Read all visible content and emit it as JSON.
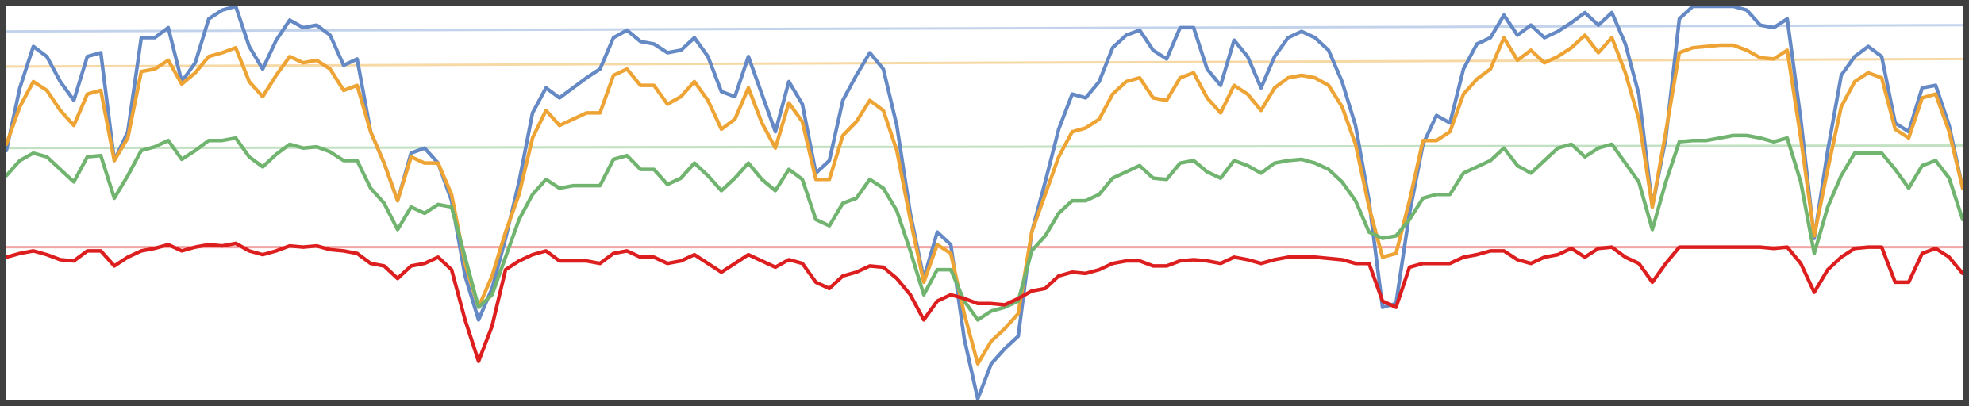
{
  "chart_data": {
    "type": "line",
    "categories": [
      null,
      null,
      null,
      null,
      null,
      null,
      null,
      null,
      null,
      null,
      null,
      null,
      null,
      null,
      null,
      null,
      null,
      null,
      null,
      null,
      null,
      null,
      null,
      null,
      null,
      null,
      null,
      null,
      null,
      null,
      null,
      null,
      null,
      null,
      null,
      null,
      null,
      null,
      null,
      null,
      null,
      null,
      null,
      null,
      null,
      null,
      null,
      null,
      null,
      null,
      null,
      null,
      null,
      null,
      null,
      null,
      null,
      null,
      null,
      null,
      null,
      null,
      null,
      null,
      null,
      null,
      null,
      null,
      null,
      null,
      null,
      null,
      null,
      null,
      null,
      null,
      null,
      null,
      null,
      null,
      null,
      null,
      null,
      null,
      null,
      null,
      null,
      null,
      null,
      null,
      null,
      null,
      null,
      null,
      null,
      null,
      null,
      null,
      null,
      null,
      null,
      null,
      null,
      null,
      null,
      null,
      null,
      null,
      null,
      null,
      null,
      null,
      null,
      null,
      null,
      null,
      null,
      null,
      null,
      null,
      null,
      null,
      null,
      null,
      null,
      null,
      null,
      null,
      null,
      null,
      null,
      null,
      null,
      null,
      null,
      null,
      null,
      null,
      null,
      null,
      null,
      null,
      null,
      null,
      null,
      null
    ],
    "ylim": [
      0,
      313
    ],
    "series": [
      {
        "color": "#6589c4",
        "values": [
          198,
          248,
          281,
          273,
          253,
          238,
          273,
          276,
          190,
          213,
          288,
          288,
          296,
          253,
          268,
          303,
          310,
          313,
          281,
          263,
          286,
          302,
          296,
          298,
          290,
          266,
          271,
          213,
          188,
          158,
          196,
          200,
          188,
          158,
          98,
          63,
          88,
          128,
          173,
          228,
          248,
          240,
          248,
          256,
          263,
          288,
          294,
          285,
          283,
          276,
          278,
          288,
          273,
          245,
          241,
          273,
          243,
          213,
          253,
          235,
          180,
          190,
          238,
          258,
          276,
          263,
          218,
          148,
          96,
          133,
          123,
          48,
          0,
          28,
          40,
          50,
          133,
          173,
          215,
          243,
          240,
          253,
          280,
          290,
          294,
          278,
          271,
          296,
          296,
          263,
          250,
          286,
          273,
          248,
          273,
          288,
          293,
          288,
          278,
          253,
          218,
          158,
          73,
          76,
          148,
          203,
          226,
          220,
          263,
          283,
          288,
          306,
          290,
          298,
          288,
          293,
          300,
          308,
          298,
          308,
          283,
          243,
          153,
          208,
          303,
          313,
          313,
          313,
          313,
          310,
          298,
          296,
          303,
          223,
          128,
          198,
          258,
          273,
          281,
          273,
          220,
          213,
          248,
          250,
          218,
          168
        ]
      },
      {
        "color": "#eea434",
        "values": [
          203,
          233,
          253,
          246,
          230,
          218,
          243,
          246,
          190,
          208,
          261,
          263,
          270,
          251,
          260,
          273,
          276,
          280,
          253,
          241,
          258,
          273,
          268,
          270,
          263,
          246,
          250,
          213,
          188,
          158,
          193,
          188,
          188,
          163,
          108,
          73,
          98,
          133,
          163,
          208,
          230,
          218,
          223,
          228,
          228,
          258,
          263,
          250,
          250,
          235,
          241,
          253,
          238,
          215,
          223,
          248,
          220,
          200,
          236,
          221,
          175,
          175,
          210,
          221,
          238,
          230,
          198,
          143,
          93,
          123,
          116,
          68,
          28,
          46,
          56,
          68,
          133,
          163,
          193,
          213,
          216,
          223,
          243,
          253,
          256,
          240,
          238,
          256,
          260,
          240,
          228,
          250,
          243,
          230,
          248,
          256,
          258,
          256,
          250,
          233,
          203,
          153,
          113,
          116,
          158,
          206,
          206,
          213,
          243,
          255,
          263,
          288,
          270,
          278,
          268,
          273,
          280,
          290,
          276,
          288,
          260,
          223,
          153,
          213,
          276,
          280,
          281,
          282,
          282,
          278,
          272,
          271,
          278,
          208,
          130,
          183,
          233,
          253,
          260,
          256,
          215,
          208,
          240,
          243,
          213,
          168
        ]
      },
      {
        "color": "#70b470",
        "values": [
          178,
          190,
          196,
          193,
          183,
          173,
          193,
          194,
          160,
          178,
          198,
          201,
          206,
          191,
          198,
          206,
          206,
          208,
          193,
          185,
          195,
          203,
          200,
          201,
          197,
          190,
          190,
          168,
          156,
          135,
          153,
          148,
          155,
          153,
          113,
          73,
          83,
          113,
          143,
          163,
          175,
          168,
          170,
          170,
          170,
          191,
          194,
          183,
          183,
          171,
          176,
          188,
          178,
          166,
          176,
          188,
          175,
          166,
          183,
          175,
          143,
          138,
          156,
          160,
          175,
          168,
          150,
          118,
          83,
          103,
          103,
          78,
          63,
          70,
          73,
          78,
          118,
          130,
          148,
          158,
          158,
          163,
          176,
          181,
          186,
          176,
          175,
          188,
          190,
          181,
          176,
          190,
          186,
          180,
          188,
          190,
          191,
          188,
          183,
          173,
          158,
          133,
          128,
          130,
          143,
          160,
          163,
          163,
          180,
          185,
          190,
          200,
          186,
          180,
          190,
          200,
          203,
          193,
          200,
          203,
          188,
          173,
          135,
          173,
          205,
          206,
          206,
          208,
          210,
          210,
          208,
          205,
          208,
          173,
          116,
          153,
          178,
          196,
          196,
          196,
          183,
          168,
          186,
          190,
          176,
          143
        ]
      },
      {
        "color": "#dc1e1e",
        "values": [
          113,
          116,
          118,
          115,
          111,
          110,
          118,
          118,
          106,
          113,
          118,
          120,
          123,
          118,
          121,
          123,
          122,
          124,
          118,
          115,
          118,
          122,
          121,
          122,
          119,
          118,
          116,
          108,
          106,
          96,
          106,
          108,
          113,
          103,
          63,
          30,
          58,
          103,
          110,
          115,
          118,
          110,
          110,
          110,
          108,
          116,
          118,
          113,
          113,
          108,
          110,
          115,
          108,
          101,
          108,
          115,
          110,
          105,
          111,
          108,
          93,
          88,
          98,
          101,
          106,
          105,
          96,
          83,
          63,
          78,
          83,
          80,
          76,
          76,
          75,
          80,
          86,
          88,
          98,
          101,
          100,
          103,
          108,
          110,
          110,
          106,
          106,
          110,
          111,
          110,
          108,
          113,
          111,
          108,
          111,
          113,
          113,
          113,
          112,
          111,
          108,
          108,
          78,
          73,
          105,
          108,
          108,
          108,
          113,
          115,
          118,
          118,
          111,
          108,
          113,
          115,
          120,
          113,
          120,
          121,
          113,
          108,
          93,
          108,
          121,
          121,
          121,
          121,
          121,
          121,
          121,
          120,
          121,
          108,
          85,
          103,
          113,
          120,
          121,
          121,
          93,
          93,
          116,
          120,
          113,
          100
        ]
      }
    ],
    "trendlines": [
      {
        "color": "#c3d3ec",
        "values": [
          293,
          298
        ]
      },
      {
        "color": "#f7d9a6",
        "values": [
          265,
          271
        ]
      },
      {
        "color": "#c2e1c2",
        "values": [
          200,
          202
        ]
      },
      {
        "color": "#f3a6a6",
        "values": [
          121,
          121
        ]
      }
    ]
  }
}
